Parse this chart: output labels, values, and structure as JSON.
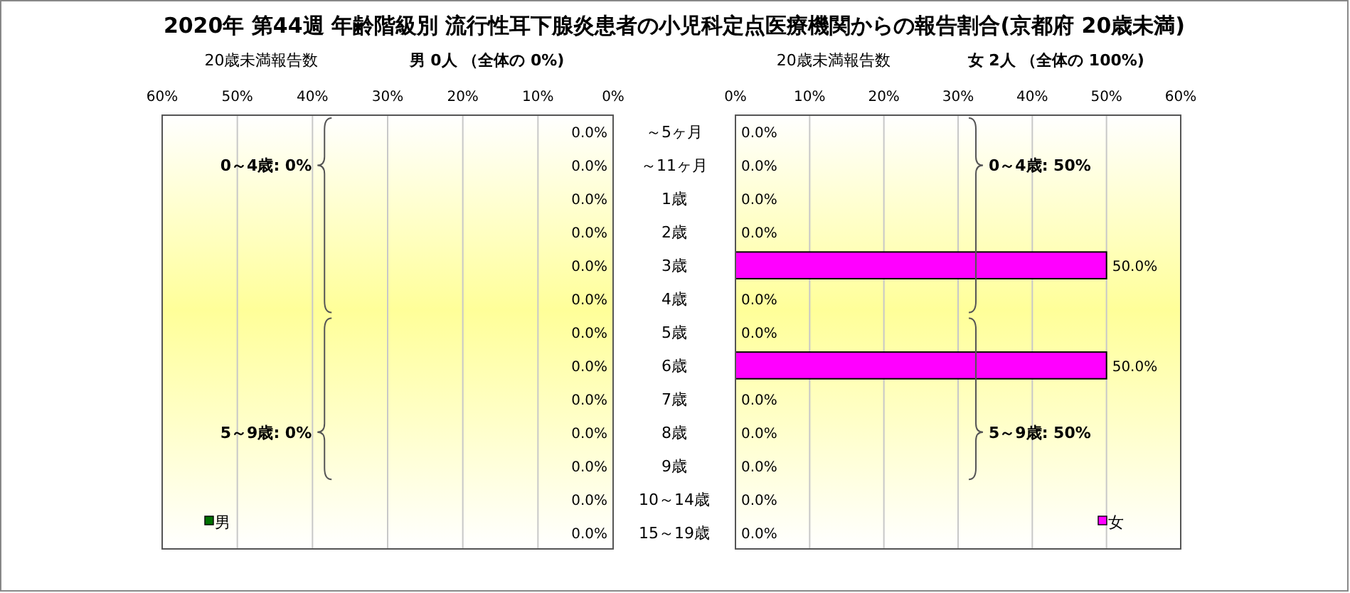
{
  "chart_data": [
    {
      "type": "bar",
      "orientation": "horizontal",
      "title": "2020年 第44週 年齢階級別 流行性耳下腺炎患者の小児科定点医療機関からの報告割合(京都府 20歳未満)",
      "subtitle": "男  0人 （全体の  0%)",
      "xlabel": "20歳未満報告数",
      "categories": [
        null,
        null,
        null,
        null,
        null,
        null,
        null,
        null,
        null,
        null,
        null,
        null,
        null
      ],
      "series": [
        {
          "name": "男",
          "color": "#007000",
          "values": [
            0,
            0,
            0,
            0,
            0,
            0,
            0,
            0,
            0,
            0,
            0,
            0,
            0
          ],
          "value_labels": [
            "0.0%",
            "0.0%",
            "0.0%",
            "0.0%",
            "0.0%",
            "0.0%",
            "0.0%",
            "0.0%",
            "0.0%",
            "0.0%",
            "0.0%",
            "0.0%",
            "0.0%"
          ]
        }
      ],
      "xlim": [
        60,
        0
      ],
      "xticks": [
        {
          "value": 60,
          "label": "60%"
        },
        {
          "value": 50,
          "label": "50%"
        },
        {
          "value": 40,
          "label": "40%"
        },
        {
          "value": 30,
          "label": "30%"
        },
        {
          "value": 20,
          "label": "20%"
        },
        {
          "value": 10,
          "label": "10%"
        },
        {
          "value": 0,
          "label": "0%"
        }
      ],
      "grid": "x",
      "legend": "bottom left",
      "annotations": [
        "0～4歳: 0%",
        "5～9歳: 0%"
      ]
    },
    {
      "type": "bar",
      "orientation": "horizontal",
      "subtitle": "女  2人 （全体の  100%)",
      "xlabel": "20歳未満報告数",
      "categories": [
        "～5ヶ月",
        "～11ヶ月",
        "1歳",
        "2歳",
        "3歳",
        "4歳",
        "5歳",
        "6歳",
        "7歳",
        "8歳",
        "9歳",
        "10～14歳",
        "15～19歳"
      ],
      "series": [
        {
          "name": "女",
          "color": "#ff00ff",
          "values": [
            0,
            0,
            0,
            0,
            50,
            0,
            0,
            50,
            0,
            0,
            0,
            0,
            0
          ],
          "value_labels": [
            "0.0%",
            "0.0%",
            "0.0%",
            "0.0%",
            "50.0%",
            "0.0%",
            "0.0%",
            "50.0%",
            "0.0%",
            "0.0%",
            "0.0%",
            "0.0%",
            "0.0%"
          ]
        }
      ],
      "xlim": [
        0,
        60
      ],
      "xticks": [
        {
          "value": 0,
          "label": "0%"
        },
        {
          "value": 10,
          "label": "10%"
        },
        {
          "value": 20,
          "label": "20%"
        },
        {
          "value": 30,
          "label": "30%"
        },
        {
          "value": 40,
          "label": "40%"
        },
        {
          "value": 50,
          "label": "50%"
        },
        {
          "value": 60,
          "label": "60%"
        }
      ],
      "grid": "x",
      "legend": "bottom right",
      "annotations": [
        "0～4歳: 50%",
        "5～9歳: 50%"
      ]
    }
  ]
}
